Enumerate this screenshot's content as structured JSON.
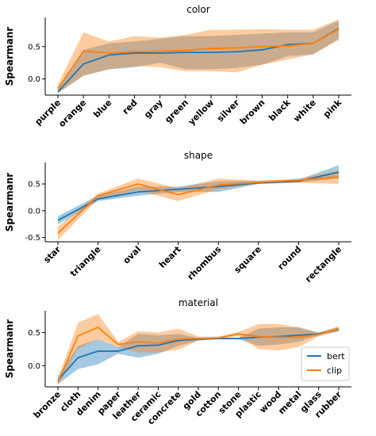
{
  "colors": {
    "bert": "#1f77b4",
    "clip": "#ff7f0e"
  },
  "legend": {
    "position": "lower-right",
    "entries": [
      "bert",
      "clip"
    ]
  },
  "chart_data": [
    {
      "type": "line",
      "title": "color",
      "ylabel": "Spearmanr",
      "ylim": [
        -0.25,
        0.95
      ],
      "yticks": [
        "0.0",
        "0.5"
      ],
      "categories": [
        "purple",
        "orange",
        "blue",
        "red",
        "gray",
        "green",
        "yellow",
        "silver",
        "brown",
        "black",
        "white",
        "pink"
      ],
      "series": [
        {
          "name": "bert",
          "values": [
            -0.2,
            0.23,
            0.37,
            0.4,
            0.4,
            0.41,
            0.41,
            0.42,
            0.45,
            0.53,
            0.55,
            0.78
          ],
          "lower": [
            -0.22,
            0.05,
            0.15,
            0.18,
            0.25,
            0.15,
            0.15,
            0.17,
            0.22,
            0.35,
            0.38,
            0.62
          ],
          "upper": [
            -0.15,
            0.45,
            0.55,
            0.58,
            0.62,
            0.66,
            0.66,
            0.68,
            0.7,
            0.72,
            0.72,
            0.9
          ]
        },
        {
          "name": "clip",
          "values": [
            -0.15,
            0.43,
            0.4,
            0.42,
            0.43,
            0.44,
            0.47,
            0.48,
            0.5,
            0.51,
            0.55,
            0.77
          ],
          "lower": [
            -0.22,
            0.05,
            0.15,
            0.2,
            0.18,
            0.12,
            0.12,
            0.1,
            0.22,
            0.3,
            0.38,
            0.6
          ],
          "upper": [
            -0.08,
            0.72,
            0.58,
            0.66,
            0.64,
            0.68,
            0.76,
            0.76,
            0.77,
            0.76,
            0.76,
            0.92
          ]
        }
      ]
    },
    {
      "type": "line",
      "title": "shape",
      "ylabel": "Spearmanr",
      "ylim": [
        -0.58,
        0.9
      ],
      "yticks": [
        "-0.5",
        "0.0",
        "0.5"
      ],
      "categories": [
        "star",
        "triangle",
        "oval",
        "heart",
        "rhombus",
        "square",
        "round",
        "rectangle"
      ],
      "series": [
        {
          "name": "bert",
          "values": [
            -0.18,
            0.22,
            0.35,
            0.4,
            0.45,
            0.52,
            0.55,
            0.72
          ],
          "lower": [
            -0.26,
            0.18,
            0.28,
            0.35,
            0.35,
            0.5,
            0.53,
            0.6
          ],
          "upper": [
            -0.1,
            0.28,
            0.45,
            0.45,
            0.55,
            0.56,
            0.58,
            0.85
          ]
        },
        {
          "name": "clip",
          "values": [
            -0.42,
            0.28,
            0.5,
            0.3,
            0.48,
            0.53,
            0.57,
            0.63
          ],
          "lower": [
            -0.55,
            0.22,
            0.38,
            0.18,
            0.4,
            0.5,
            0.52,
            0.5
          ],
          "upper": [
            -0.3,
            0.32,
            0.6,
            0.42,
            0.6,
            0.56,
            0.6,
            0.75
          ]
        }
      ]
    },
    {
      "type": "line",
      "title": "material",
      "ylabel": "Spearmanr",
      "ylim": [
        -0.32,
        0.83
      ],
      "yticks": [
        "0.0",
        "0.5"
      ],
      "categories": [
        "bronze",
        "cloth",
        "denim",
        "paper",
        "leather",
        "ceramic",
        "concrete",
        "gold",
        "cotton",
        "stone",
        "plastic",
        "wood",
        "metal",
        "glass",
        "rubber"
      ],
      "series": [
        {
          "name": "bert",
          "values": [
            -0.22,
            0.12,
            0.22,
            0.22,
            0.3,
            0.31,
            0.38,
            0.4,
            0.41,
            0.41,
            0.43,
            0.44,
            0.46,
            0.48,
            0.55
          ],
          "lower": [
            -0.28,
            -0.05,
            0.02,
            0.18,
            0.12,
            0.18,
            0.3,
            0.38,
            0.4,
            0.4,
            0.3,
            0.32,
            0.36,
            0.46,
            0.52
          ],
          "upper": [
            -0.16,
            0.3,
            0.4,
            0.28,
            0.48,
            0.46,
            0.48,
            0.42,
            0.42,
            0.42,
            0.56,
            0.58,
            0.58,
            0.5,
            0.58
          ]
        },
        {
          "name": "clip",
          "values": [
            -0.25,
            0.45,
            0.58,
            0.32,
            0.36,
            0.34,
            0.4,
            0.41,
            0.42,
            0.48,
            0.44,
            0.43,
            0.43,
            0.47,
            0.56
          ],
          "lower": [
            -0.3,
            0.25,
            0.4,
            0.28,
            0.2,
            0.2,
            0.24,
            0.38,
            0.4,
            0.45,
            0.25,
            0.23,
            0.28,
            0.44,
            0.52
          ],
          "upper": [
            -0.2,
            0.65,
            0.78,
            0.36,
            0.52,
            0.5,
            0.56,
            0.44,
            0.44,
            0.51,
            0.63,
            0.63,
            0.58,
            0.5,
            0.6
          ]
        }
      ]
    }
  ]
}
